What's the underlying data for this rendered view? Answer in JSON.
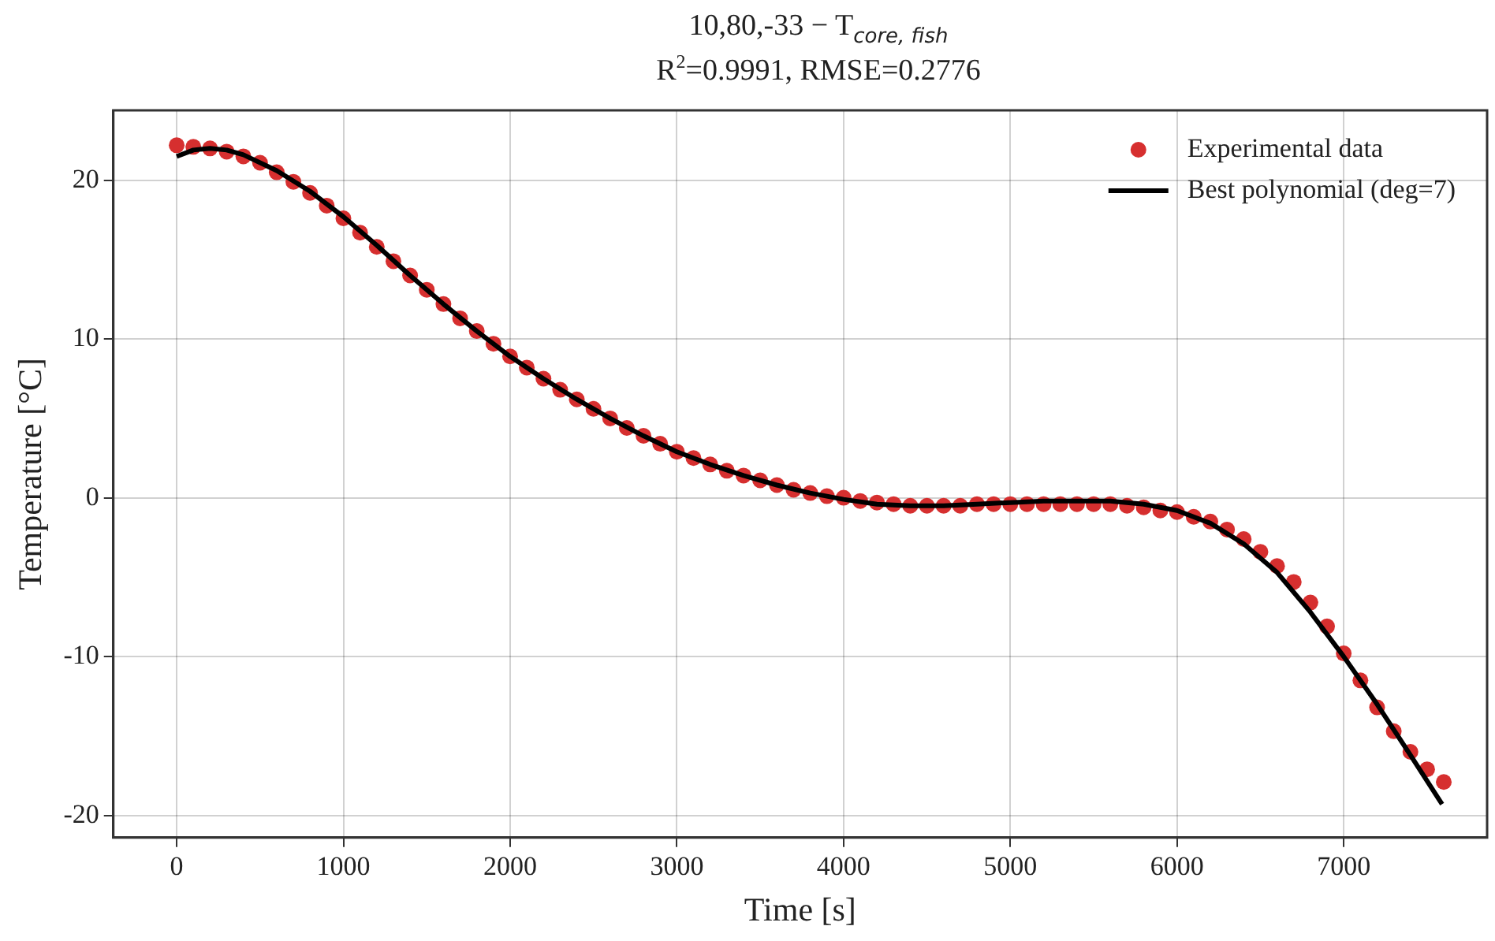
{
  "chart_data": {
    "type": "scatter",
    "title": "10,80,-33 − T$_{core, fish}$",
    "subtitle": "R$^{2}$=0.9991, RMSE=0.2776",
    "xlabel": "Time [s]",
    "ylabel": "Temperature [°C]",
    "xlim": [
      -380,
      7860
    ],
    "xticks": [
      0,
      1000,
      2000,
      3000,
      4000,
      5000,
      6000,
      7000
    ],
    "ylim": [
      -21.4,
      24.4
    ],
    "yticks": [
      -20,
      -10,
      0,
      10,
      20
    ],
    "grid": true,
    "legend": "top right",
    "marker": "circle",
    "series": [
      {
        "name": "Experimental data",
        "color": "#d62f2f",
        "x": [
          0,
          100,
          200,
          300,
          400,
          500,
          600,
          700,
          800,
          900,
          1000,
          1100,
          1200,
          1300,
          1400,
          1500,
          1600,
          1700,
          1800,
          1900,
          2000,
          2100,
          2200,
          2300,
          2400,
          2500,
          2600,
          2700,
          2800,
          2900,
          3000,
          3100,
          3200,
          3300,
          3400,
          3500,
          3600,
          3700,
          3800,
          3900,
          4000,
          4100,
          4200,
          4300,
          4400,
          4500,
          4600,
          4700,
          4800,
          4900,
          5000,
          5100,
          5200,
          5300,
          5400,
          5500,
          5600,
          5700,
          5800,
          5900,
          6000,
          6100,
          6200,
          6300,
          6400,
          6500,
          6600,
          6700,
          6800,
          6900,
          7000,
          7100,
          7200,
          7300,
          7400,
          7500,
          7600
        ],
        "values": [
          22.2,
          22.1,
          22.0,
          21.8,
          21.5,
          21.1,
          20.5,
          19.9,
          19.2,
          18.4,
          17.6,
          16.7,
          15.8,
          14.9,
          14.0,
          13.1,
          12.2,
          11.3,
          10.5,
          9.7,
          8.9,
          8.2,
          7.5,
          6.8,
          6.2,
          5.6,
          5.0,
          4.4,
          3.9,
          3.4,
          2.9,
          2.5,
          2.1,
          1.7,
          1.4,
          1.1,
          0.8,
          0.5,
          0.3,
          0.1,
          0.0,
          -0.2,
          -0.3,
          -0.4,
          -0.5,
          -0.5,
          -0.5,
          -0.5,
          -0.4,
          -0.4,
          -0.4,
          -0.4,
          -0.4,
          -0.4,
          -0.4,
          -0.4,
          -0.4,
          -0.5,
          -0.6,
          -0.8,
          -0.9,
          -1.2,
          -1.5,
          -2.0,
          -2.6,
          -3.4,
          -4.3,
          -5.3,
          -6.6,
          -8.1,
          -9.8,
          -11.5,
          -13.2,
          -14.7,
          -16.0,
          -17.1,
          -17.9
        ]
      },
      {
        "name": "Best polynomial (deg=7)",
        "type": "line",
        "color": "#000000",
        "marker": "none",
        "x": [
          0,
          100,
          200,
          300,
          400,
          600,
          800,
          1000,
          1200,
          1400,
          1600,
          1800,
          2000,
          2200,
          2400,
          2600,
          2800,
          3000,
          3200,
          3400,
          3600,
          3800,
          4000,
          4200,
          4400,
          4600,
          4800,
          5000,
          5200,
          5400,
          5600,
          5800,
          6000,
          6200,
          6400,
          6600,
          6800,
          7000,
          7200,
          7400,
          7590
        ],
        "values": [
          21.5,
          21.9,
          22.0,
          21.9,
          21.6,
          20.6,
          19.3,
          17.7,
          15.9,
          14.0,
          12.2,
          10.5,
          8.9,
          7.5,
          6.2,
          5.0,
          3.9,
          2.9,
          2.1,
          1.4,
          0.8,
          0.3,
          -0.1,
          -0.4,
          -0.5,
          -0.5,
          -0.4,
          -0.3,
          -0.2,
          -0.2,
          -0.2,
          -0.4,
          -0.8,
          -1.6,
          -2.9,
          -4.7,
          -7.2,
          -10.0,
          -13.0,
          -16.2,
          -19.3
        ]
      }
    ]
  }
}
